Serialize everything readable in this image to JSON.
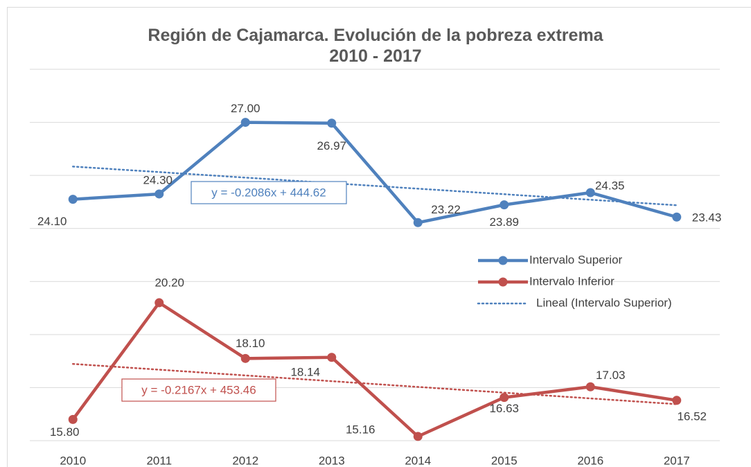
{
  "chart_data": {
    "type": "line",
    "title": "Región de Cajamarca. Evolución de la pobreza extrema 2010 - 2017",
    "x": [
      2010,
      2011,
      2012,
      2013,
      2014,
      2015,
      2016,
      2017
    ],
    "xlim": [
      2009.5,
      2017.5
    ],
    "xticks": [
      2010,
      2011,
      2012,
      2013,
      2014,
      2015,
      2016,
      2017
    ],
    "ylim": [
      15,
      29
    ],
    "yticks": [
      15,
      17,
      19,
      21,
      23,
      25,
      27,
      29
    ],
    "grid": true,
    "legend": "right",
    "series": [
      {
        "name": "Intervalo Superior",
        "color": "#4f81bd",
        "values": [
          24.1,
          24.3,
          27,
          26.97,
          23.22,
          23.89,
          24.35,
          23.43
        ],
        "value_labels": [
          "24.10",
          "24.30",
          "27.00",
          "26.97",
          "23.22",
          "23.89",
          "24.35",
          "23.43"
        ]
      },
      {
        "name": "Intervalo Inferior",
        "color": "#c0504d",
        "values": [
          15.8,
          20.2,
          18.1,
          18.14,
          15.16,
          16.63,
          17.03,
          16.52
        ],
        "value_labels": [
          "15.80",
          "20.20",
          "18.10",
          "18.14",
          "15.16",
          "16.63",
          "17.03",
          "16.52"
        ]
      }
    ],
    "trendlines": [
      {
        "name": "Lineal (Intervalo Superior)",
        "color": "#4f81bd",
        "slope": -0.2086,
        "intercept": 444.62,
        "label": "y = -0.2086x + 444.62"
      },
      {
        "color": "#c0504d",
        "slope": -0.2167,
        "intercept": 453.46,
        "label": "y = -0.2167x + 453.46"
      }
    ]
  }
}
